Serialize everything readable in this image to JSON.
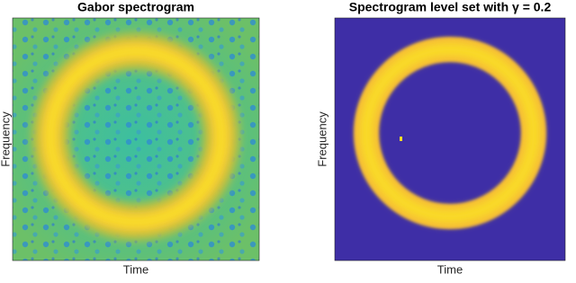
{
  "chart_data": [
    {
      "type": "image",
      "title": "Gabor spectrogram",
      "x_label": "Time",
      "y_label": "Frequency"
    },
    {
      "type": "image",
      "title": "Spectrogram level set with γ = 0.2",
      "x_label": "Time",
      "y_label": "Frequency"
    }
  ]
}
